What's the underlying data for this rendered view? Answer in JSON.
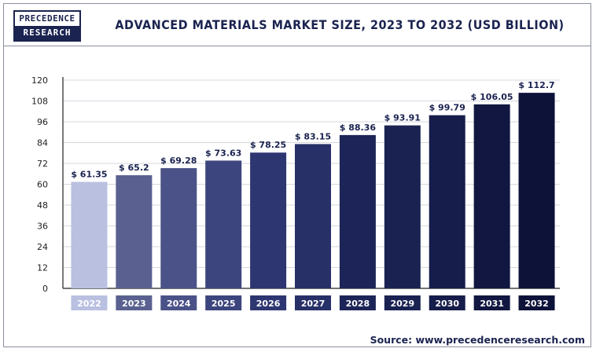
{
  "header": {
    "logo_line1": "PRECEDENCE",
    "logo_line2": "RESEARCH",
    "title": "ADVANCED MATERIALS MARKET SIZE, 2023 TO 2032 (USD BILLION)"
  },
  "footer": {
    "source": "Source: www.precedenceresearch.com"
  },
  "chart_data": {
    "type": "bar",
    "title": "ADVANCED MATERIALS MARKET SIZE, 2023 TO 2032 (USD BILLION)",
    "categories": [
      "2022",
      "2023",
      "2024",
      "2025",
      "2026",
      "2027",
      "2028",
      "2029",
      "2030",
      "2031",
      "2032"
    ],
    "values": [
      61.35,
      65.2,
      69.28,
      73.63,
      78.25,
      83.15,
      88.36,
      93.91,
      99.79,
      106.05,
      112.7
    ],
    "data_labels": [
      "$ 61.35",
      "$ 65.2",
      "$ 69.28",
      "$ 73.63",
      "$ 78.25",
      "$ 83.15",
      "$ 88.36",
      "$ 93.91",
      "$ 99.79",
      "$ 106.05",
      "$ 112.7"
    ],
    "ylim": [
      0,
      120
    ],
    "yticks": [
      0,
      12,
      24,
      36,
      48,
      60,
      72,
      84,
      96,
      108,
      120
    ],
    "grid": true,
    "colors": [
      "#b9c0e0",
      "#5a6190",
      "#4a5287",
      "#3d457e",
      "#2e3672",
      "#283068",
      "#1d2558",
      "#1a2252",
      "#161d4a",
      "#111740",
      "#0c1238"
    ]
  }
}
